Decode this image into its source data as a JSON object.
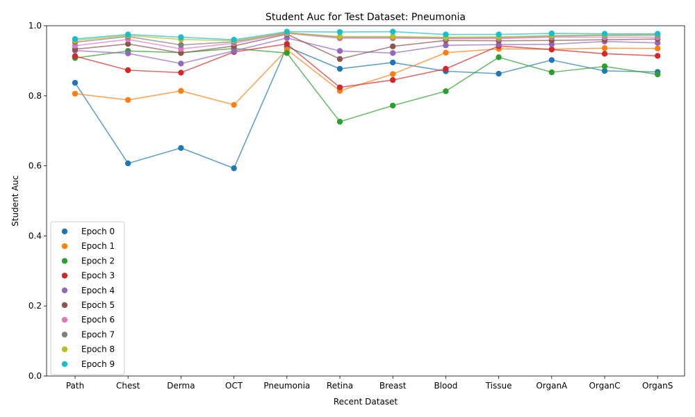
{
  "chart_data": {
    "type": "line",
    "title": "Student Auc for Test Dataset: Pneumonia",
    "xlabel": "Recent Dataset",
    "ylabel": "Student Auc",
    "ylim": [
      0,
      1
    ],
    "yticks": [
      "0.0",
      "0.2",
      "0.4",
      "0.6",
      "0.8",
      "1.0"
    ],
    "grid": false,
    "legend_position": "lower-left",
    "categories": [
      "Path",
      "Chest",
      "Derma",
      "OCT",
      "Pneumonia",
      "Retina",
      "Breast",
      "Blood",
      "Tissue",
      "OrganA",
      "OrganC",
      "OrganS"
    ],
    "series": [
      {
        "name": "Epoch 0",
        "color": "#1f77b4",
        "values": [
          0.837,
          0.607,
          0.651,
          0.593,
          0.94,
          0.877,
          0.895,
          0.87,
          0.863,
          0.902,
          0.871,
          0.868
        ]
      },
      {
        "name": "Epoch 1",
        "color": "#ff7f0e",
        "values": [
          0.806,
          0.788,
          0.814,
          0.774,
          0.932,
          0.814,
          0.862,
          0.923,
          0.934,
          0.933,
          0.936,
          0.935
        ]
      },
      {
        "name": "Epoch 2",
        "color": "#2ca02c",
        "values": [
          0.908,
          0.928,
          0.923,
          0.935,
          0.922,
          0.726,
          0.772,
          0.813,
          0.91,
          0.867,
          0.884,
          0.861
        ]
      },
      {
        "name": "Epoch 3",
        "color": "#d62728",
        "values": [
          0.913,
          0.873,
          0.866,
          0.925,
          0.948,
          0.824,
          0.845,
          0.877,
          0.942,
          0.932,
          0.92,
          0.914
        ]
      },
      {
        "name": "Epoch 4",
        "color": "#9467bd",
        "values": [
          0.929,
          0.921,
          0.892,
          0.928,
          0.965,
          0.928,
          0.922,
          0.944,
          0.946,
          0.947,
          0.955,
          0.951
        ]
      },
      {
        "name": "Epoch 5",
        "color": "#8c564b",
        "values": [
          0.933,
          0.948,
          0.922,
          0.942,
          0.976,
          0.905,
          0.941,
          0.958,
          0.957,
          0.958,
          0.96,
          0.962
        ]
      },
      {
        "name": "Epoch 6",
        "color": "#e377c2",
        "values": [
          0.943,
          0.961,
          0.934,
          0.95,
          0.978,
          0.964,
          0.964,
          0.963,
          0.963,
          0.967,
          0.967,
          0.967
        ]
      },
      {
        "name": "Epoch 7",
        "color": "#7f7f7f",
        "values": [
          0.953,
          0.969,
          0.945,
          0.954,
          0.98,
          0.967,
          0.967,
          0.965,
          0.966,
          0.97,
          0.972,
          0.973
        ]
      },
      {
        "name": "Epoch 8",
        "color": "#bcbd22",
        "values": [
          0.958,
          0.972,
          0.961,
          0.957,
          0.98,
          0.969,
          0.969,
          0.967,
          0.968,
          0.972,
          0.974,
          0.975
        ]
      },
      {
        "name": "Epoch 9",
        "color": "#17becf",
        "values": [
          0.962,
          0.975,
          0.967,
          0.96,
          0.983,
          0.982,
          0.983,
          0.975,
          0.975,
          0.978,
          0.977,
          0.977
        ]
      }
    ]
  }
}
